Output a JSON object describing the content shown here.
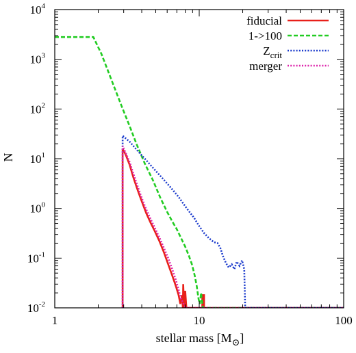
{
  "chart_data": {
    "type": "line",
    "title": "",
    "xlabel": "stellar mass [M",
    "xlabel_sub": "⊙",
    "xlabel_close": "]",
    "ylabel": "N",
    "xscale": "log",
    "yscale": "log",
    "xlim": [
      1,
      100
    ],
    "ylim": [
      0.01,
      10000
    ],
    "grid": false,
    "legend_position": "top-right",
    "x_ticks": [
      {
        "value": 1,
        "label": "1"
      },
      {
        "value": 10,
        "label": "10"
      },
      {
        "value": 100,
        "label": "100"
      }
    ],
    "y_ticks": [
      {
        "value": 0.01,
        "base": "10",
        "exp": "-2"
      },
      {
        "value": 0.1,
        "base": "10",
        "exp": "-1"
      },
      {
        "value": 1,
        "base": "10",
        "exp": "0"
      },
      {
        "value": 10,
        "base": "10",
        "exp": "1"
      },
      {
        "value": 100,
        "base": "10",
        "exp": "2"
      },
      {
        "value": 1000,
        "base": "10",
        "exp": "3"
      },
      {
        "value": 10000,
        "base": "10",
        "exp": "4"
      }
    ],
    "series": [
      {
        "name": "fiducial",
        "color": "#e8201a",
        "dash": "solid",
        "points": [
          [
            2.95,
            0.01
          ],
          [
            2.95,
            16
          ],
          [
            3.1,
            12
          ],
          [
            3.3,
            7.5
          ],
          [
            3.5,
            4.2
          ],
          [
            3.7,
            2.6
          ],
          [
            3.9,
            1.7
          ],
          [
            4.1,
            1.15
          ],
          [
            4.3,
            0.8
          ],
          [
            4.6,
            0.52
          ],
          [
            4.9,
            0.36
          ],
          [
            5.3,
            0.22
          ],
          [
            5.7,
            0.13
          ],
          [
            6.1,
            0.075
          ],
          [
            6.5,
            0.045
          ],
          [
            6.9,
            0.027
          ],
          [
            7.2,
            0.018
          ],
          [
            7.4,
            0.012
          ],
          [
            7.6,
            0.018
          ],
          [
            7.7,
            0.01
          ],
          [
            7.75,
            0.03
          ],
          [
            7.85,
            0.01
          ],
          [
            8.0,
            0.022
          ],
          [
            8.15,
            0.01
          ],
          [
            10.5,
            0.01
          ],
          [
            10.5,
            0.018
          ],
          [
            10.8,
            0.018
          ],
          [
            10.8,
            0.01
          ],
          [
            100,
            0.01
          ]
        ]
      },
      {
        "name": "1->100",
        "color": "#22cc22",
        "dash": "dashed",
        "points": [
          [
            1,
            2800
          ],
          [
            1.85,
            2800
          ],
          [
            2.1,
            1300
          ],
          [
            2.5,
            350
          ],
          [
            2.9,
            115
          ],
          [
            3.3,
            45
          ],
          [
            3.7,
            19
          ],
          [
            4.2,
            8
          ],
          [
            4.8,
            3.6
          ],
          [
            5.4,
            1.6
          ],
          [
            6.0,
            0.85
          ],
          [
            6.5,
            0.55
          ],
          [
            7.0,
            0.38
          ],
          [
            7.5,
            0.25
          ],
          [
            8.0,
            0.17
          ],
          [
            8.5,
            0.11
          ],
          [
            8.9,
            0.075
          ],
          [
            9.3,
            0.045
          ],
          [
            9.6,
            0.028
          ],
          [
            9.9,
            0.015
          ],
          [
            10.1,
            0.012
          ],
          [
            10.3,
            0.02
          ],
          [
            10.6,
            0.01
          ],
          [
            100,
            0.01
          ]
        ]
      },
      {
        "name": "Zcrit",
        "name_sub": "crit",
        "color": "#1a3acc",
        "dash": "dotted",
        "points": [
          [
            2.95,
            0.01
          ],
          [
            2.95,
            29
          ],
          [
            3.3,
            22
          ],
          [
            3.7,
            15
          ],
          [
            4.2,
            10
          ],
          [
            4.8,
            6.5
          ],
          [
            5.5,
            4.2
          ],
          [
            6.3,
            2.7
          ],
          [
            7.2,
            1.7
          ],
          [
            8.2,
            1.0
          ],
          [
            9.2,
            0.65
          ],
          [
            10.0,
            0.44
          ],
          [
            10.8,
            0.32
          ],
          [
            11.7,
            0.25
          ],
          [
            12.6,
            0.21
          ],
          [
            13.4,
            0.2
          ],
          [
            14.0,
            0.16
          ],
          [
            14.6,
            0.11
          ],
          [
            15.3,
            0.08
          ],
          [
            16.0,
            0.065
          ],
          [
            16.8,
            0.075
          ],
          [
            17.5,
            0.06
          ],
          [
            18.2,
            0.085
          ],
          [
            19.0,
            0.07
          ],
          [
            19.8,
            0.09
          ],
          [
            20.5,
            0.06
          ],
          [
            20.8,
            0.01
          ],
          [
            100,
            0.01
          ]
        ]
      },
      {
        "name": "merger",
        "color": "#dd22aa",
        "dash": "dotted",
        "points": [
          [
            2.95,
            0.01
          ],
          [
            2.95,
            18
          ],
          [
            3.1,
            13
          ],
          [
            3.3,
            8.5
          ],
          [
            3.5,
            5
          ],
          [
            3.7,
            3.1
          ],
          [
            3.9,
            2.0
          ],
          [
            4.1,
            1.35
          ],
          [
            4.3,
            0.95
          ],
          [
            4.6,
            0.62
          ],
          [
            4.9,
            0.42
          ],
          [
            5.3,
            0.26
          ],
          [
            5.7,
            0.16
          ],
          [
            6.1,
            0.1
          ],
          [
            6.5,
            0.06
          ],
          [
            6.9,
            0.036
          ],
          [
            7.2,
            0.023
          ],
          [
            7.5,
            0.015
          ],
          [
            7.8,
            0.012
          ],
          [
            8.1,
            0.01
          ],
          [
            100,
            0.01
          ]
        ]
      }
    ]
  }
}
